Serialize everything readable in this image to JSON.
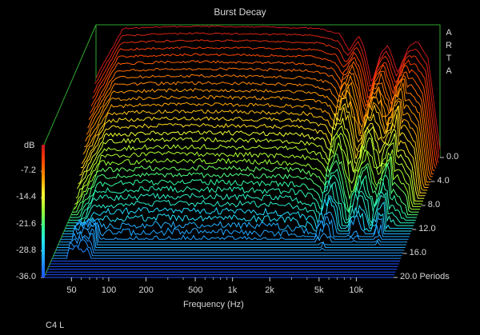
{
  "chart_data": {
    "type": "waterfall",
    "title": "Burst Decay",
    "brand": [
      "A",
      "R",
      "T",
      "A"
    ],
    "xlabel": "Frequency (Hz)",
    "x_scale": "log",
    "x_ticks": [
      "50",
      "100",
      "200",
      "500",
      "1k",
      "2k",
      "5k",
      "10k"
    ],
    "x_tick_values": [
      50,
      100,
      200,
      500,
      1000,
      2000,
      5000,
      10000
    ],
    "xlim": [
      30,
      20000
    ],
    "z_ticks": [
      "0.0",
      "4.0",
      "8.0",
      "12.0",
      "16.0",
      "20.0 Periods"
    ],
    "z_tick_values": [
      0,
      4,
      8,
      12,
      16,
      20
    ],
    "zlim": [
      0,
      20
    ],
    "ylabel": "dB",
    "y_ticks": [
      "-7.2",
      "-14.4",
      "-21.6",
      "-28.8",
      "-36.0"
    ],
    "y_tick_values": [
      -7.2,
      -14.4,
      -21.6,
      -28.8,
      -36.0
    ],
    "ylim": [
      -36,
      0
    ],
    "colorbar_colors": [
      "#c8141e",
      "#ff4400",
      "#ff9900",
      "#ffff33",
      "#99ff33",
      "#33ff99",
      "#22ddff",
      "#2299ff",
      "#1e50ff"
    ],
    "trace_count": 45,
    "profile_0": [
      [
        50,
        -1
      ],
      [
        100,
        -0.6
      ],
      [
        200,
        -0.4
      ],
      [
        500,
        -0.5
      ],
      [
        1000,
        -0.7
      ],
      [
        2000,
        -1
      ],
      [
        3000,
        -2.5
      ],
      [
        3600,
        -7
      ],
      [
        4300,
        -3
      ],
      [
        4800,
        -6.5
      ],
      [
        5500,
        -16
      ],
      [
        6500,
        -8
      ],
      [
        7500,
        -5.5
      ],
      [
        9000,
        -13
      ],
      [
        11000,
        -6
      ],
      [
        13000,
        -4.5
      ],
      [
        16000,
        -9
      ],
      [
        20000,
        -34
      ]
    ],
    "footer_label": "C4 L"
  }
}
